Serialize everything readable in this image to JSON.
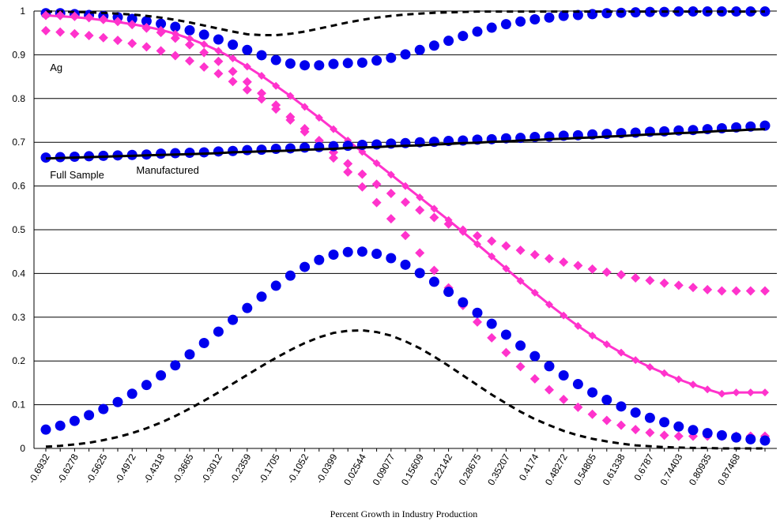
{
  "chart_data": {
    "type": "line",
    "xlabel": "Percent Growth in Industry Production",
    "ylabel": "",
    "ylim": [
      0,
      1
    ],
    "yticks": [
      "0",
      "0.1",
      "0.2",
      "0.3",
      "0.4",
      "0.5",
      "0.6",
      "0.7",
      "0.8",
      "0.9",
      "1"
    ],
    "grid": true,
    "x": [
      -0.6932,
      -0.6605,
      -0.6278,
      -0.5952,
      -0.5625,
      -0.5298,
      -0.4972,
      -0.4645,
      -0.4318,
      -0.3992,
      -0.3665,
      -0.3338,
      -0.3012,
      -0.2685,
      -0.2359,
      -0.2032,
      -0.1705,
      -0.1379,
      -0.1052,
      -0.0725,
      -0.0399,
      -0.0072,
      0.02544,
      0.0581,
      0.09077,
      0.12343,
      0.15609,
      0.18876,
      0.22142,
      0.25408,
      0.28675,
      0.31941,
      0.35207,
      0.38474,
      0.4174,
      0.45006,
      0.48272,
      0.51539,
      0.54805,
      0.58071,
      0.61338,
      0.64604,
      0.6787,
      0.71137,
      0.74403,
      0.77669,
      0.80935,
      0.84202,
      0.87468,
      0.90734,
      0.94
    ],
    "x_tick_labels": [
      "-0.6932",
      "-0.6278",
      "-0.5625",
      "-0.4972",
      "-0.4318",
      "-0.3665",
      "-0.3012",
      "-0.2359",
      "-0.1705",
      "-0.1052",
      "-0.0399",
      "0.02544",
      "0.09077",
      "0.15609",
      "0.22142",
      "0.28675",
      "0.35207",
      "0.4174",
      "0.48272",
      "0.54805",
      "0.61338",
      "0.6787",
      "0.74403",
      "0.80935",
      "0.87468"
    ],
    "series": [
      {
        "style": "blue-circles",
        "color": "#0000ee",
        "values": [
          0.995,
          0.995,
          0.993,
          0.991,
          0.989,
          0.986,
          0.982,
          0.977,
          0.971,
          0.964,
          0.956,
          0.946,
          0.935,
          0.923,
          0.911,
          0.899,
          0.888,
          0.88,
          0.876,
          0.876,
          0.879,
          0.881,
          0.882,
          0.887,
          0.893,
          0.901,
          0.911,
          0.921,
          0.932,
          0.943,
          0.953,
          0.962,
          0.97,
          0.976,
          0.981,
          0.985,
          0.989,
          0.991,
          0.993,
          0.995,
          0.996,
          0.997,
          0.998,
          0.998,
          0.999,
          0.999,
          0.999,
          0.999,
          0.999,
          0.999,
          0.999
        ]
      },
      {
        "style": "black-dashed",
        "color": "#000000",
        "values": [
          0.999,
          0.999,
          0.998,
          0.997,
          0.996,
          0.994,
          0.992,
          0.989,
          0.985,
          0.98,
          0.974,
          0.967,
          0.96,
          0.953,
          0.947,
          0.945,
          0.945,
          0.948,
          0.953,
          0.96,
          0.967,
          0.974,
          0.98,
          0.985,
          0.989,
          0.992,
          0.994,
          0.996,
          0.997,
          0.998,
          0.999,
          0.999,
          0.999,
          0.999,
          0.999,
          0.999,
          0.999,
          0.999,
          0.999,
          0.999,
          0.999,
          0.999,
          0.999,
          0.999,
          0.999,
          0.999,
          0.999,
          0.999,
          0.999,
          0.999,
          0.999
        ]
      },
      {
        "style": "magenta-line",
        "color": "#ff33cc",
        "values": [
          0.99,
          0.988,
          0.986,
          0.983,
          0.979,
          0.975,
          0.97,
          0.964,
          0.957,
          0.948,
          0.937,
          0.924,
          0.909,
          0.892,
          0.873,
          0.852,
          0.829,
          0.806,
          0.781,
          0.756,
          0.73,
          0.704,
          0.678,
          0.652,
          0.626,
          0.6,
          0.574,
          0.548,
          0.522,
          0.495,
          0.467,
          0.439,
          0.411,
          0.383,
          0.356,
          0.329,
          0.304,
          0.28,
          0.258,
          0.238,
          0.219,
          0.202,
          0.186,
          0.172,
          0.158,
          0.146,
          0.135,
          0.125,
          0.128,
          0.128,
          0.128
        ]
      },
      {
        "style": "magenta-diamonds-upper",
        "color": "#ff33cc",
        "values": [
          0.99,
          0.99,
          0.988,
          0.985,
          0.981,
          0.976,
          0.969,
          0.961,
          0.951,
          0.938,
          0.923,
          0.905,
          0.885,
          0.862,
          0.838,
          0.812,
          0.785,
          0.758,
          0.731,
          0.704,
          0.677,
          0.651,
          0.627,
          0.604,
          0.583,
          0.563,
          0.545,
          0.528,
          0.513,
          0.499,
          0.486,
          0.474,
          0.463,
          0.453,
          0.443,
          0.434,
          0.426,
          0.418,
          0.41,
          0.403,
          0.397,
          0.39,
          0.384,
          0.378,
          0.373,
          0.368,
          0.363,
          0.36,
          0.36,
          0.36,
          0.36
        ]
      },
      {
        "style": "magenta-diamonds-lower",
        "color": "#ff33cc",
        "values": [
          0.955,
          0.952,
          0.948,
          0.944,
          0.939,
          0.933,
          0.926,
          0.918,
          0.909,
          0.898,
          0.886,
          0.872,
          0.857,
          0.839,
          0.82,
          0.799,
          0.776,
          0.751,
          0.724,
          0.695,
          0.664,
          0.632,
          0.598,
          0.562,
          0.525,
          0.487,
          0.447,
          0.407,
          0.367,
          0.327,
          0.289,
          0.253,
          0.219,
          0.187,
          0.159,
          0.134,
          0.112,
          0.094,
          0.078,
          0.064,
          0.053,
          0.043,
          0.036,
          0.03,
          0.028,
          0.028,
          0.028,
          0.028,
          0.028,
          0.028,
          0.028
        ]
      },
      {
        "style": "blue-circles",
        "color": "#0000ee",
        "values": [
          0.665,
          0.666,
          0.667,
          0.668,
          0.669,
          0.67,
          0.671,
          0.672,
          0.674,
          0.675,
          0.676,
          0.677,
          0.679,
          0.68,
          0.682,
          0.683,
          0.685,
          0.686,
          0.688,
          0.689,
          0.691,
          0.692,
          0.694,
          0.695,
          0.697,
          0.698,
          0.7,
          0.701,
          0.703,
          0.704,
          0.706,
          0.707,
          0.709,
          0.71,
          0.712,
          0.713,
          0.715,
          0.716,
          0.718,
          0.719,
          0.721,
          0.722,
          0.724,
          0.725,
          0.727,
          0.728,
          0.73,
          0.732,
          0.734,
          0.736,
          0.738
        ]
      },
      {
        "style": "black-line",
        "color": "#000000",
        "values": [
          0.663,
          0.664,
          0.665,
          0.666,
          0.667,
          0.668,
          0.669,
          0.67,
          0.671,
          0.672,
          0.673,
          0.674,
          0.675,
          0.677,
          0.678,
          0.679,
          0.68,
          0.681,
          0.683,
          0.684,
          0.685,
          0.687,
          0.688,
          0.689,
          0.691,
          0.692,
          0.693,
          0.695,
          0.696,
          0.698,
          0.699,
          0.701,
          0.702,
          0.704,
          0.705,
          0.707,
          0.708,
          0.71,
          0.711,
          0.713,
          0.714,
          0.716,
          0.718,
          0.719,
          0.721,
          0.722,
          0.724,
          0.726,
          0.727,
          0.729,
          0.73
        ]
      },
      {
        "style": "blue-circles",
        "color": "#0000ee",
        "values": [
          0.043,
          0.052,
          0.063,
          0.076,
          0.09,
          0.106,
          0.125,
          0.145,
          0.167,
          0.19,
          0.215,
          0.241,
          0.267,
          0.294,
          0.321,
          0.347,
          0.372,
          0.395,
          0.415,
          0.431,
          0.443,
          0.449,
          0.45,
          0.445,
          0.435,
          0.42,
          0.401,
          0.381,
          0.358,
          0.334,
          0.31,
          0.285,
          0.26,
          0.235,
          0.211,
          0.188,
          0.167,
          0.147,
          0.128,
          0.111,
          0.096,
          0.082,
          0.07,
          0.06,
          0.05,
          0.042,
          0.035,
          0.03,
          0.025,
          0.021,
          0.018
        ]
      },
      {
        "style": "black-dashed",
        "color": "#000000",
        "values": [
          0.004,
          0.006,
          0.009,
          0.013,
          0.019,
          0.026,
          0.035,
          0.046,
          0.059,
          0.074,
          0.091,
          0.109,
          0.128,
          0.148,
          0.168,
          0.188,
          0.207,
          0.225,
          0.241,
          0.254,
          0.264,
          0.269,
          0.27,
          0.266,
          0.258,
          0.245,
          0.229,
          0.21,
          0.189,
          0.167,
          0.145,
          0.123,
          0.103,
          0.084,
          0.067,
          0.053,
          0.04,
          0.03,
          0.022,
          0.016,
          0.011,
          0.007,
          0.005,
          0.003,
          0.002,
          0.001,
          0.001,
          0.0,
          0.0,
          0.0,
          0.0
        ]
      }
    ],
    "annotations": [
      {
        "text": "Ag",
        "x": -0.6605,
        "y": 0.87
      },
      {
        "text": "Full Sample",
        "x": -0.6605,
        "y": 0.625
      },
      {
        "text": "Manufactured",
        "x": -0.4645,
        "y": 0.635
      }
    ]
  }
}
